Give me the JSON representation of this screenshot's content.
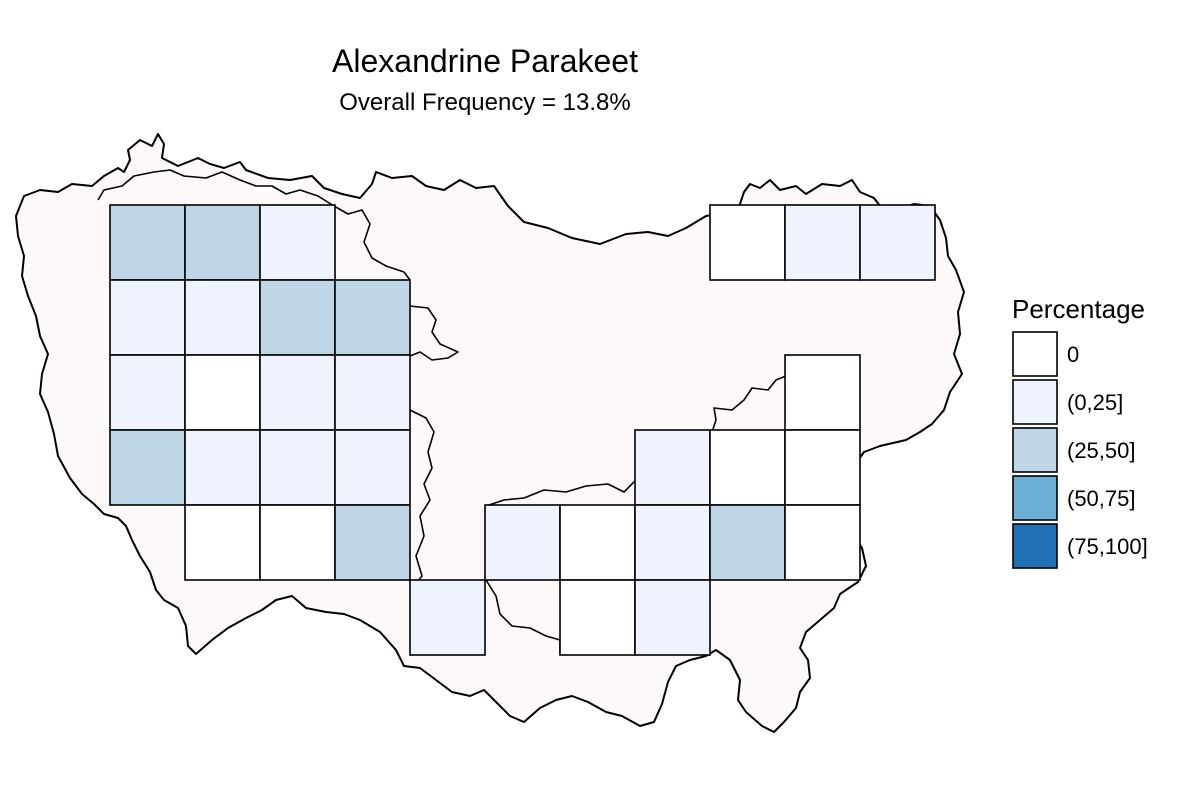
{
  "title": "Alexandrine Parakeet",
  "subtitle": "Overall Frequency = 13.8%",
  "colors": {
    "region_fill": "#fdf9f8",
    "region_stroke": "#000000",
    "cell_stroke": "#000000"
  },
  "legend": {
    "title": "Percentage",
    "items": [
      {
        "label": "0",
        "color": "#ffffff"
      },
      {
        "label": "(0,25]",
        "color": "#eef3fd"
      },
      {
        "label": "(25,50]",
        "color": "#bed6e5"
      },
      {
        "label": "(50,75]",
        "color": "#6baed6"
      },
      {
        "label": "(75,100]",
        "color": "#2171b5"
      }
    ]
  },
  "grid": {
    "columns": 11,
    "rows": 6,
    "cells": [
      {
        "col": 0,
        "row": 0,
        "cls": 2
      },
      {
        "col": 1,
        "row": 0,
        "cls": 2
      },
      {
        "col": 2,
        "row": 0,
        "cls": 1
      },
      {
        "col": 0,
        "row": 1,
        "cls": 1
      },
      {
        "col": 1,
        "row": 1,
        "cls": 1
      },
      {
        "col": 2,
        "row": 1,
        "cls": 2
      },
      {
        "col": 3,
        "row": 1,
        "cls": 2
      },
      {
        "col": 0,
        "row": 2,
        "cls": 1
      },
      {
        "col": 1,
        "row": 2,
        "cls": 0
      },
      {
        "col": 2,
        "row": 2,
        "cls": 1
      },
      {
        "col": 3,
        "row": 2,
        "cls": 1
      },
      {
        "col": 0,
        "row": 3,
        "cls": 2
      },
      {
        "col": 1,
        "row": 3,
        "cls": 1
      },
      {
        "col": 2,
        "row": 3,
        "cls": 1
      },
      {
        "col": 3,
        "row": 3,
        "cls": 1
      },
      {
        "col": 1,
        "row": 4,
        "cls": 0
      },
      {
        "col": 2,
        "row": 4,
        "cls": 0
      },
      {
        "col": 3,
        "row": 4,
        "cls": 2
      },
      {
        "col": 4,
        "row": 5,
        "cls": 1
      },
      {
        "col": 5,
        "row": 4,
        "cls": 1
      },
      {
        "col": 6,
        "row": 4,
        "cls": 0
      },
      {
        "col": 6,
        "row": 5,
        "cls": 0
      },
      {
        "col": 7,
        "row": 3,
        "cls": 1
      },
      {
        "col": 7,
        "row": 4,
        "cls": 1
      },
      {
        "col": 7,
        "row": 5,
        "cls": 1
      },
      {
        "col": 8,
        "row": 3,
        "cls": 0
      },
      {
        "col": 8,
        "row": 4,
        "cls": 2
      },
      {
        "col": 9,
        "row": 2,
        "cls": 0
      },
      {
        "col": 9,
        "row": 3,
        "cls": 0
      },
      {
        "col": 9,
        "row": 4,
        "cls": 0
      },
      {
        "col": 8,
        "row": 0,
        "cls": 0
      },
      {
        "col": 9,
        "row": 0,
        "cls": 1
      },
      {
        "col": 10,
        "row": 0,
        "cls": 1
      }
    ]
  }
}
